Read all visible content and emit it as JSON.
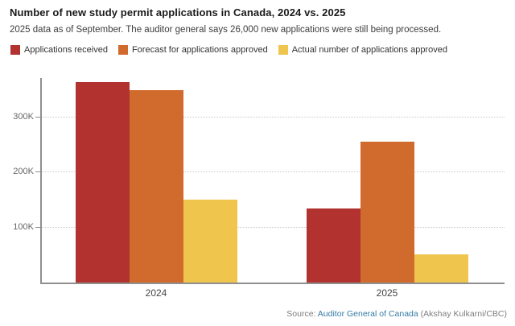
{
  "chart_data": {
    "type": "bar",
    "title": "Number of new study permit applications in Canada, 2024 vs. 2025",
    "subtitle": "2025 data as of September. The auditor general says 26,000 new applications were still being processed.",
    "categories": [
      "2024",
      "2025"
    ],
    "series": [
      {
        "name": "Applications received",
        "color": "#b1322e",
        "values": [
          362000,
          134000
        ]
      },
      {
        "name": "Forecast for applications approved",
        "color": "#d16b2d",
        "values": [
          347000,
          255000
        ]
      },
      {
        "name": "Actual number of applications approved",
        "color": "#f0c54e",
        "values": [
          150000,
          51000
        ]
      }
    ],
    "ylim": [
      0,
      400000
    ],
    "yticks": [
      {
        "value": 100000,
        "label": "100K"
      },
      {
        "value": 200000,
        "label": "200K"
      },
      {
        "value": 300000,
        "label": "300K"
      }
    ],
    "grid": "horizontal-dotted",
    "legend_position": "top-left"
  },
  "source": {
    "prefix": "Source: ",
    "link": "Auditor General of Canada",
    "suffix": " (Akshay Kulkarni/CBC)"
  },
  "colors": {
    "link": "#357ba6",
    "axis_line": "#8f8f8f",
    "gridline": "#c9c9c9",
    "axis_text": "#666666"
  }
}
